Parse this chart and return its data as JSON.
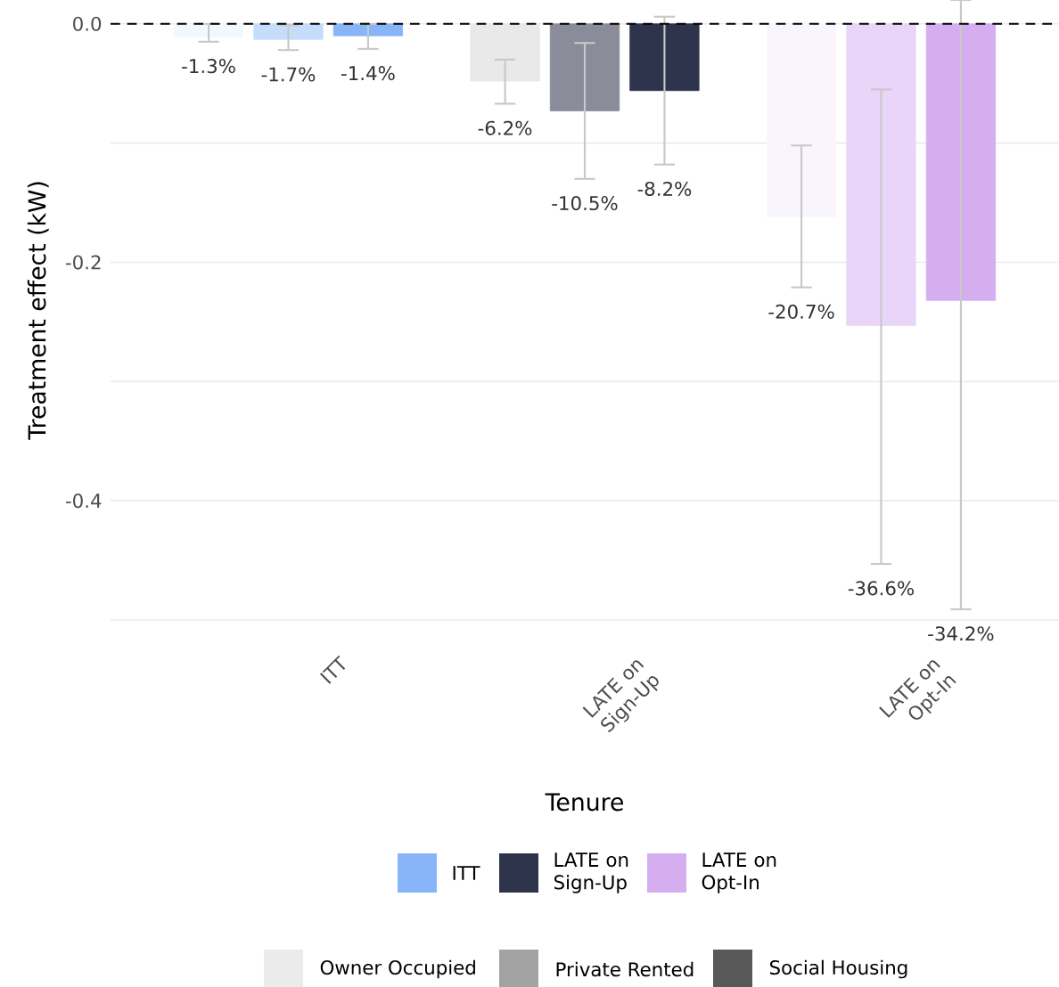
{
  "chart_data": {
    "type": "bar",
    "xlabel": "Tenure",
    "ylabel": "Treatment effect (kW)",
    "categories": [
      "ITT",
      "LATE on Sign-Up",
      "LATE on Opt-In"
    ],
    "series": [
      {
        "colors": [
          "#f3f8fe",
          "#e9e9ea",
          "#f9f5fd"
        ],
        "values": [
          -0.011,
          -0.048,
          -0.162
        ],
        "errors": [
          [
            -0.015,
            0.0
          ],
          [
            -0.067,
            -0.03
          ],
          [
            -0.221,
            -0.102
          ]
        ]
      },
      {
        "colors": [
          "#c6dcfb",
          "#8a8d99",
          "#e8d5f8"
        ],
        "values": [
          -0.013,
          -0.073,
          -0.253
        ],
        "errors": [
          [
            -0.022,
            -0.001
          ],
          [
            -0.13,
            -0.016
          ],
          [
            -0.453,
            -0.055
          ]
        ]
      },
      {
        "colors": [
          "#88b5f8",
          "#2e344b",
          "#d5aef0"
        ],
        "values": [
          -0.01,
          -0.056,
          -0.232
        ],
        "errors": [
          [
            -0.021,
            0.0
          ],
          [
            -0.118,
            0.006
          ],
          [
            -0.491,
            0.02
          ]
        ]
      }
    ],
    "annotations": [
      "Owner Occupied",
      "Private Rented",
      "Social Housing",
      {
        "text": "-1.3%",
        "y": -0.015
      },
      {
        "text": "-1.7%",
        "y": -0.022
      },
      {
        "text": "-1.4%",
        "y": -0.021
      },
      {
        "text": "-6.2%",
        "y": -0.067
      },
      {
        "text": "-10.5%",
        "y": -0.13
      },
      {
        "text": "-8.2%",
        "y": -0.118
      },
      {
        "text": "-20.7%",
        "y": -0.221
      },
      {
        "text": "-36.6%",
        "y": -0.453
      },
      {
        "text": "-34.2%",
        "y": -0.491
      }
    ],
    "ylim": [
      -0.5,
      0.02
    ],
    "yticks": [
      {
        "value": -0.5,
        "label": null
      },
      -0.4,
      {
        "value": -0.3,
        "label": null
      },
      -0.2,
      {
        "value": -0.1,
        "label": null
      },
      {
        "value": 0,
        "label": "0.0"
      }
    ],
    "grid": "y",
    "ref_lines": [
      {
        "axis": "y",
        "value": 0,
        "color": "#000000",
        "line_style": "dashed"
      }
    ]
  }
}
